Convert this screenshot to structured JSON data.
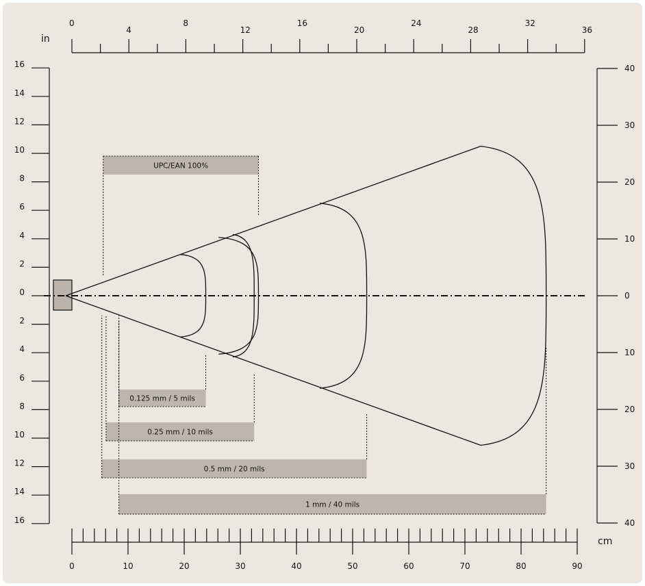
{
  "chart_data": {
    "type": "diagram",
    "units": {
      "inch_axis": "in",
      "cm_axis": "cm"
    },
    "top_axis": {
      "unit": "in",
      "min": 0,
      "max": 36,
      "labels": [
        "0",
        "4",
        "8",
        "12",
        "16",
        "20",
        "24",
        "28",
        "32",
        "36"
      ]
    },
    "bottom_axis": {
      "unit": "cm",
      "min": 0,
      "max": 90,
      "labels": [
        "0",
        "10",
        "20",
        "30",
        "40",
        "50",
        "60",
        "70",
        "80",
        "90"
      ]
    },
    "left_axis": {
      "unit": "in",
      "labels": [
        "16",
        "14",
        "12",
        "10",
        "8",
        "6",
        "4",
        "2",
        "0",
        "2",
        "4",
        "6",
        "8",
        "10",
        "12",
        "14",
        "16"
      ]
    },
    "right_axis": {
      "unit": "cm",
      "labels": [
        "40",
        "30",
        "20",
        "10",
        "0",
        "10",
        "20",
        "30",
        "40"
      ]
    },
    "scan_fields": [
      {
        "label": "UPC/EAN 100%",
        "start_in": 2.2,
        "end_in": 13.1,
        "half_width_in": 4.1
      },
      {
        "label": "0.125 mm / 5 mils",
        "start_in": 3.3,
        "end_in": 9.4,
        "half_width_in": 2.9
      },
      {
        "label": "0.25 mm / 10 mils",
        "start_in": 2.4,
        "end_in": 12.8,
        "half_width_in": 4.3
      },
      {
        "label": "0.5 mm / 20 mils",
        "start_in": 2.1,
        "end_in": 20.7,
        "half_width_in": 6.5
      },
      {
        "label": "1 mm / 40 mils",
        "start_in": 3.3,
        "end_in": 33.3,
        "half_width_in": 10.5
      }
    ]
  }
}
